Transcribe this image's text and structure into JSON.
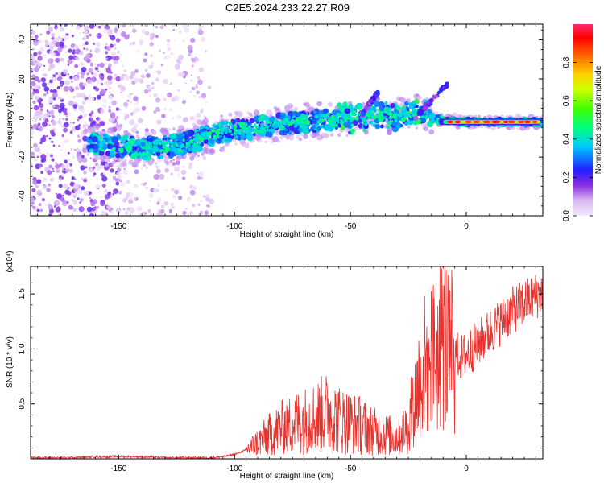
{
  "title": "C2E5.2024.233.22.27.R09",
  "colors": {
    "snr_line": "#e8322e",
    "spectrum_low": "#e6d2f5",
    "spectrum_mid": "#6a0fd8",
    "spectrum_high": "#ff0000"
  },
  "chart_data": [
    {
      "type": "heatmap",
      "title": "C2E5.2024.233.22.27.R09",
      "xlabel": "Height of straight line (km)",
      "ylabel": "Frequency (Hz)",
      "xlim": [
        -188,
        33
      ],
      "ylim": [
        -50,
        48
      ],
      "xticks": [
        -150,
        -100,
        -50,
        0
      ],
      "yticks": [
        -40,
        -20,
        0,
        20,
        40
      ],
      "xtick_labels": [
        "-150",
        "-100",
        "-50",
        "0"
      ],
      "ytick_labels": [
        "-40",
        "-20",
        "0",
        "20",
        "40"
      ],
      "grid": false,
      "colorbar": {
        "label": "Normalized spectral amplitude",
        "range": [
          0,
          1
        ],
        "ticks": [
          0,
          0.2,
          0.4,
          0.6,
          0.8
        ],
        "tick_labels": [
          "0.0",
          "0.2",
          "0.4",
          "0.6",
          "0.8"
        ],
        "colormap": "rainbow (lavender-violet-blue-cyan-green-yellow-red)"
      },
      "ridge": {
        "description_points_x": [
          -160,
          -140,
          -125,
          -110,
          -100,
          -90,
          -80,
          -70,
          -60,
          -50,
          -40,
          -30,
          -20,
          -15,
          -10,
          0,
          10,
          20,
          32
        ],
        "description_points_freq": [
          -13,
          -16,
          -14,
          -9,
          -6,
          -5,
          -3,
          -2,
          -1,
          0,
          2,
          1,
          3,
          0,
          -1,
          -2,
          -2,
          -2,
          -2
        ]
      }
    },
    {
      "type": "line",
      "xlabel": "Height of straight line (km)",
      "ylabel": "SNR (10 * v/v)",
      "y_multiplier": "(x10⁴)",
      "xlim": [
        -188,
        33
      ],
      "ylim": [
        0,
        1.75
      ],
      "xticks": [
        -150,
        -100,
        -50,
        0
      ],
      "yticks": [
        0.5,
        1.0,
        1.5
      ],
      "xtick_labels": [
        "-150",
        "-100",
        "-50",
        "0"
      ],
      "ytick_labels": [
        "0.5",
        "1.0",
        "1.5"
      ],
      "grid": false,
      "series": [
        {
          "x": [
            -188,
            -180,
            -170,
            -160,
            -150,
            -140,
            -130,
            -120,
            -110,
            -105,
            -100,
            -95,
            -90,
            -85,
            -80,
            -75,
            -70,
            -65,
            -60,
            -55,
            -50,
            -45,
            -40,
            -35,
            -30,
            -25,
            -22,
            -20,
            -18,
            -15,
            -12,
            -10,
            -8,
            -5,
            -2,
            0,
            5,
            10,
            15,
            20,
            25,
            30,
            33
          ],
          "y": [
            0.01,
            0.01,
            0.01,
            0.02,
            0.02,
            0.02,
            0.01,
            0.01,
            0.01,
            0.02,
            0.04,
            0.08,
            0.15,
            0.22,
            0.28,
            0.32,
            0.35,
            0.38,
            0.42,
            0.36,
            0.33,
            0.3,
            0.25,
            0.22,
            0.2,
            0.3,
            0.55,
            0.75,
            0.85,
            0.9,
            0.95,
            1.1,
            1.0,
            0.95,
            0.92,
            0.95,
            1.05,
            1.15,
            1.25,
            1.35,
            1.42,
            1.48,
            1.52
          ]
        }
      ]
    }
  ]
}
